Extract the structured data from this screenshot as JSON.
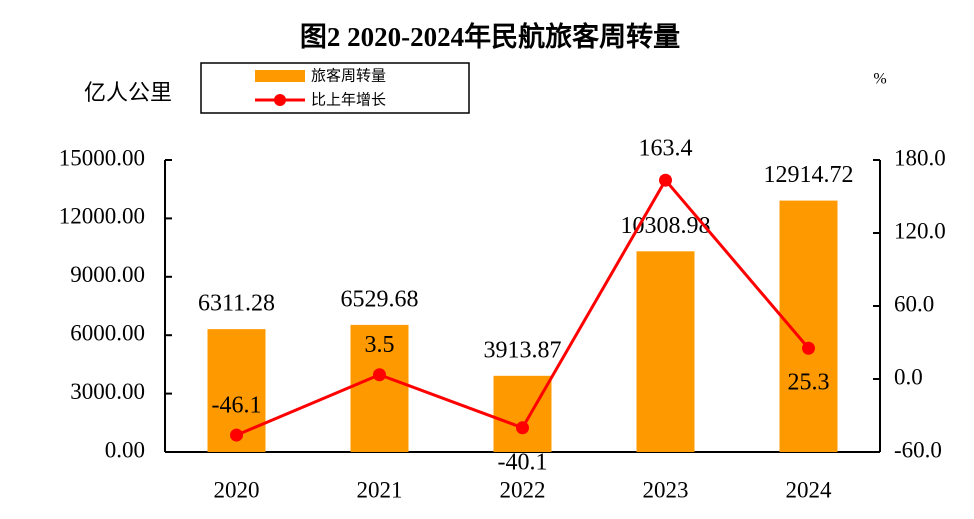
{
  "chart_data": {
    "type": "bar_line",
    "title": "图2  2020-2024年民航旅客周转量",
    "y_label": "亿人公里",
    "y2_label": "%",
    "categories": [
      "2020",
      "2021",
      "2022",
      "2023",
      "2024"
    ],
    "series": [
      {
        "name": "旅客周转量",
        "type": "bar",
        "color": "#ff9900",
        "values": [
          6311.28,
          6529.68,
          3913.87,
          10308.98,
          12914.72
        ]
      },
      {
        "name": "比上年增长",
        "type": "line",
        "axis": "y2",
        "color": "#ff0000",
        "values": [
          -46.1,
          3.5,
          -40.1,
          163.4,
          25.3
        ]
      }
    ],
    "ylim": [
      0,
      15000
    ],
    "yticks": [
      {
        "value": 0,
        "label": "0.00"
      },
      {
        "value": 3000,
        "label": "3000.00"
      },
      {
        "value": 6000,
        "label": "6000.00"
      },
      {
        "value": 9000,
        "label": "9000.00"
      },
      {
        "value": 12000,
        "label": "12000.00"
      },
      {
        "value": 15000,
        "label": "15000.00"
      }
    ],
    "y2lim": [
      -60,
      180
    ],
    "y2ticks": [
      {
        "value": -60,
        "label": "-60.0"
      },
      {
        "value": 0,
        "label": "0.0"
      },
      {
        "value": 60,
        "label": "60.0"
      },
      {
        "value": 120,
        "label": "120.0"
      },
      {
        "value": 180,
        "label": "180.0"
      }
    ],
    "grid": false
  }
}
